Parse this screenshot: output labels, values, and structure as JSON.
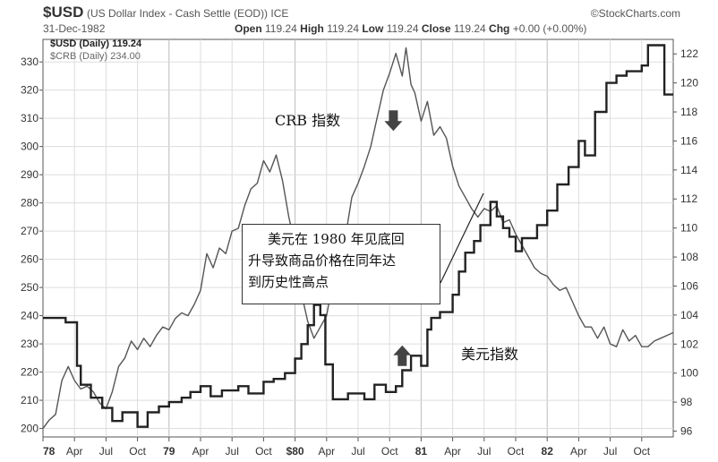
{
  "header": {
    "symbol": "$USD",
    "description": "(US Dollar Index - Cash Settle (EOD)) ICE",
    "brand": "©StockCharts.com",
    "date": "31-Dec-1982",
    "open_label": "Open",
    "open": "119.24",
    "high_label": "High",
    "high": "119.24",
    "low_label": "Low",
    "low": "119.24",
    "close_label": "Close",
    "close": "119.24",
    "chg_label": "Chg",
    "chg": "+0.00 (+0.00%)"
  },
  "legend": {
    "usd": "$USD (Daily) 119.24",
    "crb": "$CRB (Daily) 234.00"
  },
  "annotations": {
    "crb_label": "CRB 指数",
    "usd_label": "美元指数",
    "callout_lines": [
      "美元在 1980 年见底回",
      "升导致商品价格在同年达",
      "到历史性高点"
    ]
  },
  "chart_data": {
    "type": "line",
    "x_ticks": [
      "78",
      "Apr",
      "Jul",
      "Oct",
      "79",
      "Apr",
      "Jul",
      "Oct",
      "$80",
      "Apr",
      "Jul",
      "Oct",
      "81",
      "Apr",
      "Jul",
      "Oct",
      "82",
      "Apr",
      "Jul",
      "Oct"
    ],
    "left_axis": {
      "ticks": [
        200,
        210,
        220,
        230,
        240,
        250,
        260,
        270,
        280,
        290,
        300,
        310,
        320,
        330
      ],
      "range": [
        197,
        338
      ]
    },
    "right_axis": {
      "ticks": [
        96,
        98,
        100,
        102,
        104,
        106,
        108,
        110,
        112,
        114,
        116,
        118,
        120,
        122
      ],
      "range": [
        95.6,
        123
      ]
    },
    "grid": true,
    "series": [
      {
        "name": "$USD (Daily) 119.24",
        "axis": "right",
        "step": true,
        "x": [
          1978.0,
          1978.18,
          1978.27,
          1978.3,
          1978.38,
          1978.47,
          1978.55,
          1978.63,
          1978.7,
          1978.75,
          1978.83,
          1978.92,
          1979.0,
          1979.1,
          1979.17,
          1979.25,
          1979.33,
          1979.42,
          1979.55,
          1979.63,
          1979.75,
          1979.83,
          1979.92,
          1980.0,
          1980.05,
          1980.1,
          1980.15,
          1980.2,
          1980.24,
          1980.3,
          1980.42,
          1980.55,
          1980.63,
          1980.72,
          1980.8,
          1980.85,
          1980.92,
          1981.0,
          1981.05,
          1981.08,
          1981.15,
          1981.25,
          1981.3,
          1981.35,
          1981.42,
          1981.47,
          1981.55,
          1981.6,
          1981.65,
          1981.7,
          1981.75,
          1981.8,
          1981.92,
          1982.0,
          1982.08,
          1982.17,
          1982.25,
          1982.3,
          1982.38,
          1982.47,
          1982.55,
          1982.63,
          1982.75,
          1982.8,
          1982.88,
          1982.93,
          1983.0
        ],
        "y": [
          103.8,
          103.5,
          100.5,
          99.2,
          98.3,
          97.6,
          96.7,
          97.3,
          97.3,
          96.3,
          97.3,
          97.7,
          98.0,
          98.3,
          98.7,
          99.1,
          98.4,
          98.8,
          99.1,
          98.6,
          99.4,
          99.6,
          100.0,
          101.0,
          102.0,
          103.3,
          104.7,
          104.0,
          100.6,
          98.2,
          98.6,
          98.2,
          99.2,
          98.7,
          99.1,
          100.2,
          101.2,
          100.5,
          103.0,
          103.8,
          104.2,
          105.4,
          107.0,
          108.3,
          109.1,
          110.2,
          111.8,
          110.8,
          110.0,
          109.4,
          108.4,
          109.3,
          110.2,
          111.2,
          113.0,
          114.2,
          116.0,
          115.0,
          118.0,
          120.0,
          120.5,
          120.8,
          121.2,
          122.6,
          122.6,
          119.2,
          119.2
        ]
      },
      {
        "name": "$CRB (Daily) 234.00",
        "axis": "left",
        "x": [
          1978.0,
          1978.05,
          1978.1,
          1978.15,
          1978.2,
          1978.25,
          1978.3,
          1978.35,
          1978.4,
          1978.45,
          1978.5,
          1978.55,
          1978.6,
          1978.65,
          1978.7,
          1978.75,
          1978.8,
          1978.85,
          1978.9,
          1978.95,
          1979.0,
          1979.05,
          1979.1,
          1979.15,
          1979.2,
          1979.25,
          1979.3,
          1979.35,
          1979.4,
          1979.45,
          1979.5,
          1979.55,
          1979.6,
          1979.65,
          1979.7,
          1979.75,
          1979.8,
          1979.85,
          1979.9,
          1979.95,
          1980.0,
          1980.05,
          1980.1,
          1980.15,
          1980.2,
          1980.25,
          1980.3,
          1980.35,
          1980.4,
          1980.45,
          1980.5,
          1980.55,
          1980.6,
          1980.65,
          1980.7,
          1980.75,
          1980.8,
          1980.85,
          1980.88,
          1980.92,
          1980.95,
          1981.0,
          1981.05,
          1981.1,
          1981.15,
          1981.2,
          1981.25,
          1981.3,
          1981.35,
          1981.4,
          1981.45,
          1981.5,
          1981.55,
          1981.6,
          1981.65,
          1981.7,
          1981.75,
          1981.8,
          1981.85,
          1981.9,
          1981.95,
          1982.0,
          1982.05,
          1982.1,
          1982.15,
          1982.2,
          1982.25,
          1982.3,
          1982.35,
          1982.4,
          1982.45,
          1982.5,
          1982.55,
          1982.6,
          1982.65,
          1982.7,
          1982.75,
          1982.8,
          1982.85,
          1982.9,
          1982.95,
          1983.0
        ],
        "y": [
          200,
          203,
          205,
          217,
          222,
          217,
          214,
          215,
          213,
          209,
          207,
          213,
          222,
          225,
          231,
          228,
          232,
          229,
          233,
          236,
          235,
          239,
          241,
          240,
          244,
          249,
          262,
          257,
          264,
          262,
          270,
          271,
          279,
          285,
          287,
          295,
          291,
          297,
          288,
          275,
          265,
          248,
          238,
          232,
          236,
          240,
          252,
          260,
          268,
          282,
          287,
          293,
          300,
          310,
          320,
          326,
          333,
          325,
          335,
          322,
          319,
          309,
          316,
          304,
          307,
          303,
          293,
          286,
          282,
          278,
          275,
          278,
          277,
          279,
          273,
          274,
          269,
          265,
          261,
          257,
          255,
          254,
          251,
          249,
          250,
          245,
          240,
          236,
          236,
          232,
          236,
          230,
          229,
          235,
          231,
          233,
          229,
          229,
          231,
          232,
          233,
          234
        ]
      }
    ],
    "arrows": [
      {
        "dir": "down",
        "x": 1980.78,
        "y": 309
      },
      {
        "dir": "up",
        "x": 1980.85,
        "y": 226
      }
    ]
  }
}
